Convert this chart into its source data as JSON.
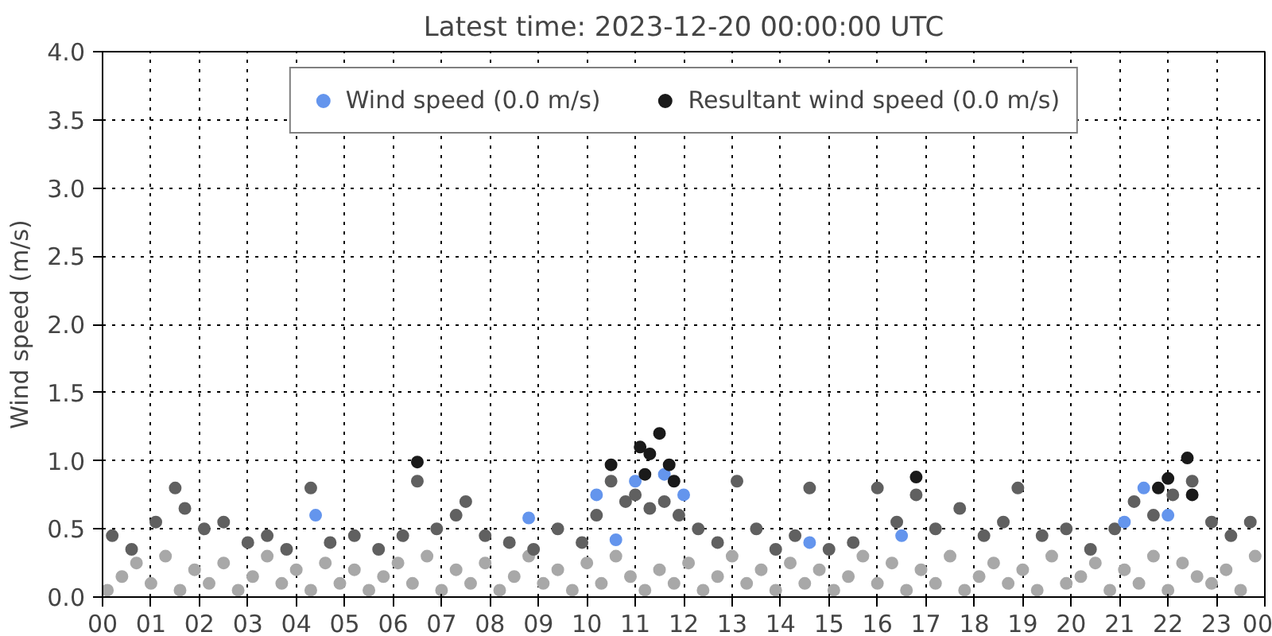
{
  "chart_data": {
    "type": "scatter",
    "title": "Latest time: 2023-12-20 00:00:00 UTC",
    "ylabel": "Wind speed (m/s)",
    "xlim": [
      0,
      24
    ],
    "ylim": [
      0,
      4.0
    ],
    "xticks": [
      {
        "value": 0,
        "label": "00"
      },
      {
        "value": 1,
        "label": "01"
      },
      {
        "value": 2,
        "label": "02"
      },
      {
        "value": 3,
        "label": "03"
      },
      {
        "value": 4,
        "label": "04"
      },
      {
        "value": 5,
        "label": "05"
      },
      {
        "value": 6,
        "label": "06"
      },
      {
        "value": 7,
        "label": "07"
      },
      {
        "value": 8,
        "label": "08"
      },
      {
        "value": 9,
        "label": "09"
      },
      {
        "value": 10,
        "label": "10"
      },
      {
        "value": 11,
        "label": "11"
      },
      {
        "value": 12,
        "label": "12"
      },
      {
        "value": 13,
        "label": "13"
      },
      {
        "value": 14,
        "label": "14"
      },
      {
        "value": 15,
        "label": "15"
      },
      {
        "value": 16,
        "label": "16"
      },
      {
        "value": 17,
        "label": "17"
      },
      {
        "value": 18,
        "label": "18"
      },
      {
        "value": 19,
        "label": "19"
      },
      {
        "value": 20,
        "label": "20"
      },
      {
        "value": 21,
        "label": "21"
      },
      {
        "value": 22,
        "label": "22"
      },
      {
        "value": 23,
        "label": "23"
      },
      {
        "value": 24,
        "label": "00"
      }
    ],
    "yticks": [
      {
        "value": 0,
        "label": "0.0"
      },
      {
        "value": 0.5,
        "label": "0.5"
      },
      {
        "value": 1,
        "label": "1.0"
      },
      {
        "value": 1.5,
        "label": "1.5"
      },
      {
        "value": 2,
        "label": "2.0"
      },
      {
        "value": 2.5,
        "label": "2.5"
      },
      {
        "value": 3,
        "label": "3.0"
      },
      {
        "value": 3.5,
        "label": "3.5"
      },
      {
        "value": 4,
        "label": "4.0"
      }
    ],
    "grid": true,
    "legend": "top",
    "marker": "circle",
    "series": [
      {
        "color": "#a8a8a8",
        "x": [
          0.1,
          0.4,
          0.7,
          1.0,
          1.3,
          1.6,
          1.9,
          2.2,
          2.5,
          2.8,
          3.1,
          3.4,
          3.7,
          4.0,
          4.3,
          4.6,
          4.9,
          5.2,
          5.5,
          5.8,
          6.1,
          6.4,
          6.7,
          7.0,
          7.3,
          7.6,
          7.9,
          8.2,
          8.5,
          8.8,
          9.1,
          9.4,
          9.7,
          10.0,
          10.3,
          10.6,
          10.9,
          11.2,
          11.5,
          11.8,
          12.1,
          12.4,
          12.7,
          13.0,
          13.3,
          13.6,
          13.9,
          14.2,
          14.5,
          14.8,
          15.1,
          15.4,
          15.7,
          16.0,
          16.3,
          16.6,
          16.9,
          17.2,
          17.5,
          17.8,
          18.1,
          18.4,
          18.7,
          19.0,
          19.3,
          19.6,
          19.9,
          20.2,
          20.5,
          20.8,
          21.1,
          21.4,
          21.7,
          22.0,
          22.3,
          22.6,
          22.9,
          23.2,
          23.5,
          23.8
        ],
        "values": [
          0.05,
          0.15,
          0.25,
          0.1,
          0.3,
          0.05,
          0.2,
          0.1,
          0.25,
          0.05,
          0.15,
          0.3,
          0.1,
          0.2,
          0.05,
          0.25,
          0.1,
          0.2,
          0.05,
          0.15,
          0.25,
          0.1,
          0.3,
          0.05,
          0.2,
          0.1,
          0.25,
          0.05,
          0.15,
          0.3,
          0.1,
          0.2,
          0.05,
          0.25,
          0.1,
          0.3,
          0.15,
          0.05,
          0.2,
          0.1,
          0.25,
          0.05,
          0.15,
          0.3,
          0.1,
          0.2,
          0.05,
          0.25,
          0.1,
          0.2,
          0.05,
          0.15,
          0.3,
          0.1,
          0.25,
          0.05,
          0.2,
          0.1,
          0.3,
          0.05,
          0.15,
          0.25,
          0.1,
          0.2,
          0.05,
          0.3,
          0.1,
          0.15,
          0.25,
          0.05,
          0.2,
          0.1,
          0.3,
          0.05,
          0.25,
          0.15,
          0.1,
          0.2,
          0.05,
          0.3
        ]
      },
      {
        "color": "#606060",
        "x": [
          0.2,
          0.6,
          1.1,
          1.5,
          1.7,
          2.1,
          2.5,
          3.0,
          3.4,
          3.8,
          4.3,
          4.7,
          5.2,
          5.7,
          6.2,
          6.5,
          6.9,
          7.3,
          7.5,
          7.9,
          8.4,
          8.9,
          9.4,
          9.9,
          10.2,
          10.5,
          10.8,
          11.0,
          11.3,
          11.6,
          11.9,
          12.3,
          12.7,
          13.1,
          13.5,
          13.9,
          14.3,
          14.6,
          15.0,
          15.5,
          16.0,
          16.4,
          16.8,
          17.2,
          17.7,
          18.2,
          18.6,
          18.9,
          19.4,
          19.9,
          20.4,
          20.9,
          21.3,
          21.7,
          22.1,
          22.5,
          22.9,
          23.3,
          23.7
        ],
        "values": [
          0.45,
          0.35,
          0.55,
          0.8,
          0.65,
          0.5,
          0.55,
          0.4,
          0.45,
          0.35,
          0.8,
          0.4,
          0.45,
          0.35,
          0.45,
          0.85,
          0.5,
          0.6,
          0.7,
          0.45,
          0.4,
          0.35,
          0.5,
          0.4,
          0.6,
          0.85,
          0.7,
          0.75,
          0.65,
          0.7,
          0.6,
          0.5,
          0.4,
          0.85,
          0.5,
          0.35,
          0.45,
          0.8,
          0.35,
          0.4,
          0.8,
          0.55,
          0.75,
          0.5,
          0.65,
          0.45,
          0.55,
          0.8,
          0.45,
          0.5,
          0.35,
          0.5,
          0.7,
          0.6,
          0.75,
          0.85,
          0.55,
          0.45,
          0.55
        ]
      },
      {
        "name": "Wind speed (0.0 m/s)",
        "color": "#6495ed",
        "x": [
          4.4,
          8.8,
          10.2,
          10.6,
          11.0,
          11.6,
          12.0,
          14.6,
          16.5,
          21.1,
          21.5,
          22.0
        ],
        "values": [
          0.6,
          0.58,
          0.75,
          0.42,
          0.85,
          0.9,
          0.75,
          0.4,
          0.45,
          0.55,
          0.8,
          0.6
        ]
      },
      {
        "name": "Resultant wind speed (0.0 m/s)",
        "color": "#1a1a1a",
        "x": [
          6.5,
          10.5,
          11.1,
          11.2,
          11.3,
          11.5,
          11.7,
          11.8,
          16.8,
          21.8,
          22.0,
          22.4,
          22.5
        ],
        "values": [
          0.99,
          0.97,
          1.1,
          0.9,
          1.05,
          1.2,
          0.97,
          0.85,
          0.88,
          0.8,
          0.87,
          1.02,
          0.75
        ]
      }
    ]
  }
}
